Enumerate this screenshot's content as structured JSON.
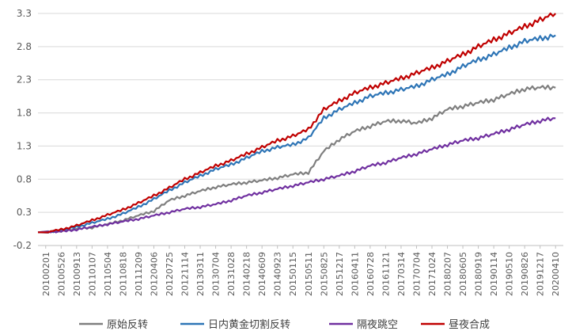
{
  "chart_data": {
    "type": "line",
    "title": "",
    "xlabel": "",
    "ylabel": "",
    "ylim": [
      -0.2,
      3.3
    ],
    "yticks": [
      -0.2,
      0.3,
      0.8,
      1.3,
      1.8,
      2.3,
      2.8,
      3.3
    ],
    "grid": "horizontal",
    "legend_position": "bottom",
    "x_tick_labels": [
      "20100201",
      "20100526",
      "20100913",
      "20110107",
      "20110504",
      "20110818",
      "20111209",
      "20120406",
      "20120725",
      "20121114",
      "20130311",
      "20130704",
      "20131028",
      "20140218",
      "20140609",
      "20140923",
      "20150115",
      "20150511",
      "20150825",
      "20151217",
      "20160411",
      "20160728",
      "20161121",
      "20170314",
      "20170704",
      "20171024",
      "20180207",
      "20180605",
      "20180919",
      "20190114",
      "20190510",
      "20190826",
      "20191217",
      "20200410"
    ],
    "series": [
      {
        "name": "原始反转",
        "color": "#7f7f7f",
        "values": [
          0.0,
          0.02,
          0.05,
          0.07,
          0.12,
          0.18,
          0.25,
          0.32,
          0.48,
          0.55,
          0.62,
          0.68,
          0.72,
          0.75,
          0.78,
          0.82,
          0.87,
          0.9,
          1.22,
          1.4,
          1.52,
          1.6,
          1.67,
          1.68,
          1.64,
          1.72,
          1.85,
          1.9,
          1.95,
          2.0,
          2.08,
          2.16,
          2.18,
          2.18
        ]
      },
      {
        "name": "日内黄金切割反转",
        "color": "#2e75b6",
        "values": [
          0.0,
          0.03,
          0.08,
          0.14,
          0.2,
          0.28,
          0.38,
          0.5,
          0.63,
          0.75,
          0.85,
          0.95,
          1.02,
          1.12,
          1.22,
          1.28,
          1.32,
          1.42,
          1.72,
          1.85,
          1.95,
          2.05,
          2.1,
          2.15,
          2.2,
          2.3,
          2.38,
          2.5,
          2.6,
          2.68,
          2.78,
          2.88,
          2.92,
          2.97
        ]
      },
      {
        "name": "隔夜跳空",
        "color": "#7030a0",
        "values": [
          0.0,
          0.01,
          0.04,
          0.08,
          0.12,
          0.16,
          0.2,
          0.25,
          0.3,
          0.35,
          0.38,
          0.42,
          0.48,
          0.55,
          0.6,
          0.65,
          0.7,
          0.75,
          0.8,
          0.85,
          0.92,
          1.0,
          1.05,
          1.12,
          1.18,
          1.25,
          1.32,
          1.38,
          1.42,
          1.48,
          1.55,
          1.62,
          1.68,
          1.72
        ]
      },
      {
        "name": "昼夜合成",
        "color": "#c00000",
        "values": [
          0.0,
          0.04,
          0.1,
          0.18,
          0.26,
          0.34,
          0.44,
          0.55,
          0.67,
          0.8,
          0.9,
          1.0,
          1.08,
          1.18,
          1.28,
          1.38,
          1.45,
          1.55,
          1.85,
          1.98,
          2.1,
          2.18,
          2.25,
          2.32,
          2.4,
          2.48,
          2.58,
          2.68,
          2.8,
          2.9,
          3.0,
          3.1,
          3.2,
          3.3
        ]
      }
    ]
  }
}
